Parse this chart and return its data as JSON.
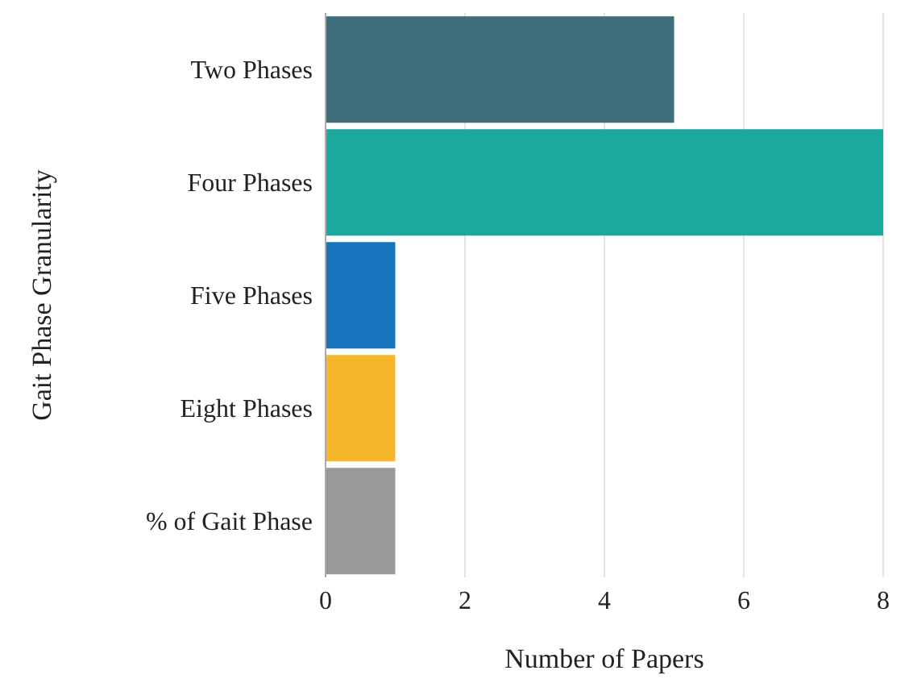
{
  "chart_data": {
    "type": "bar",
    "orientation": "horizontal",
    "xlabel": "Number of Papers",
    "ylabel": "Gait Phase Granularity",
    "categories": [
      "Two Phases",
      "Four Phases",
      "Five Phases",
      "Eight Phases",
      "% of Gait Phase"
    ],
    "values": [
      5,
      8,
      1,
      1,
      1
    ],
    "colors": [
      "#3d6e7a",
      "#1aa99c",
      "#1675bc",
      "#f6b72b",
      "#999999"
    ],
    "xlim": [
      0,
      8
    ],
    "xticks": [
      0,
      2,
      4,
      6,
      8
    ],
    "grid": "x"
  }
}
